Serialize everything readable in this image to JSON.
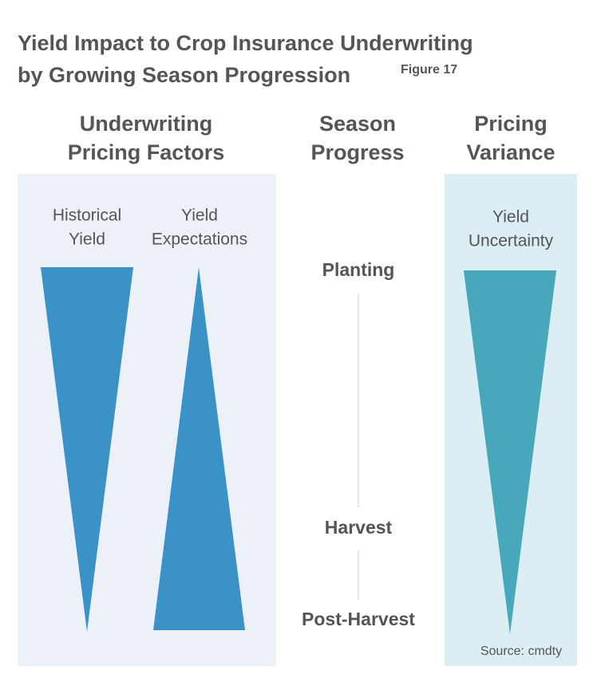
{
  "header": {
    "title": [
      "Yield Impact to Crop Insurance Underwriting",
      "by Growing Season Progression"
    ],
    "figure": "Figure 17"
  },
  "columns": [
    {
      "header": [
        "Underwriting",
        "Pricing Factors"
      ],
      "items": [
        [
          "Historical",
          "Yield"
        ],
        [
          "Yield",
          "Expectations"
        ]
      ]
    },
    {
      "header": [
        "Season",
        "Progress"
      ],
      "stages": [
        "Planting",
        "Harvest",
        "Post-Harvest"
      ]
    },
    {
      "header": [
        "Pricing",
        "Variance"
      ],
      "items": [
        [
          "Yield",
          "Uncertainty"
        ]
      ]
    }
  ],
  "source": "Source: cmdty"
}
